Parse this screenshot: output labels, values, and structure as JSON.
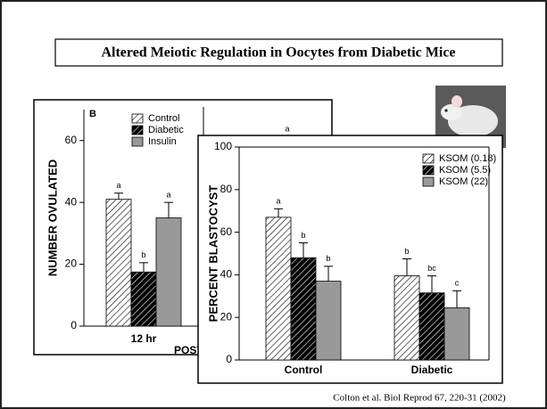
{
  "title": "Altered Meiotic Regulation in Oocytes from Diabetic Mice",
  "citation": "Colton et al. Biol Reprod 67, 220-31 (2002)",
  "chart_data": [
    {
      "type": "bar",
      "panel": "B",
      "ylabel": "NUMBER OVULATED",
      "xlabel": "POST",
      "annotation": "a",
      "categories": [
        "12 hr"
      ],
      "series": [
        {
          "name": "Control",
          "color": "#ffffff",
          "hatch": true,
          "values": [
            41
          ],
          "errors": [
            2
          ],
          "letters": [
            "a"
          ]
        },
        {
          "name": "Diabetic",
          "color": "#000000",
          "hatch": true,
          "values": [
            17.5
          ],
          "errors": [
            3
          ],
          "letters": [
            "b"
          ]
        },
        {
          "name": "Insulin",
          "color": "#999999",
          "hatch": false,
          "values": [
            35
          ],
          "errors": [
            5
          ],
          "letters": [
            "a"
          ]
        }
      ],
      "ylim": [
        0,
        70
      ],
      "yticks": [
        0,
        20,
        40,
        60
      ]
    },
    {
      "type": "bar",
      "ylabel": "PERCENT BLASTOCYST",
      "categories": [
        "Control",
        "Diabetic"
      ],
      "series": [
        {
          "name": "KSOM (0.18)",
          "color": "#ffffff",
          "hatch": true,
          "values": [
            67,
            39.5
          ],
          "errors": [
            4,
            8
          ],
          "letters": [
            "a",
            "b"
          ]
        },
        {
          "name": "KSOM (5.5)",
          "color": "#000000",
          "hatch": true,
          "values": [
            48,
            31.5
          ],
          "errors": [
            7,
            8
          ],
          "letters": [
            "b",
            "bc"
          ]
        },
        {
          "name": "KSOM (22)",
          "color": "#999999",
          "hatch": false,
          "values": [
            37,
            24.5
          ],
          "errors": [
            7,
            8
          ],
          "letters": [
            "b",
            "c"
          ]
        }
      ],
      "ylim": [
        0,
        100
      ],
      "yticks": [
        0,
        20,
        40,
        60,
        80,
        100
      ]
    }
  ]
}
